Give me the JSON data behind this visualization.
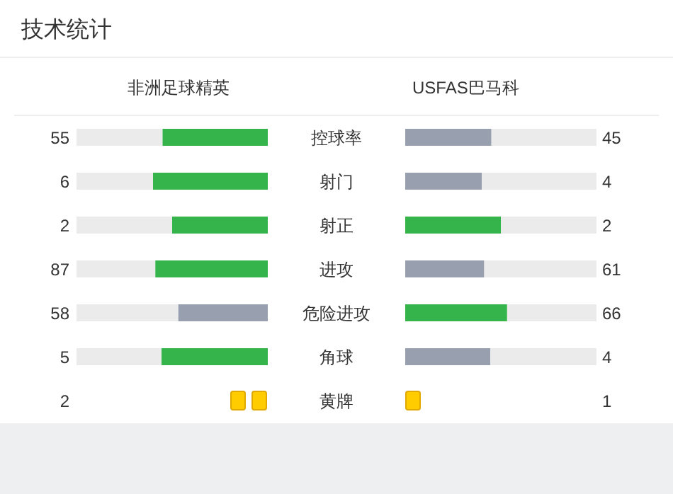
{
  "chart_data": [
    {
      "type": "other",
      "title": "技术统计",
      "data_labels": true,
      "categories": [
        "控球率",
        "射门",
        "射正",
        "进攻",
        "危险进攻",
        "角球"
      ],
      "series": [
        {
          "name": "非洲足球精英",
          "values": [
            55,
            6,
            2,
            87,
            58,
            5
          ],
          "colors": [
            "#34b44a",
            "#34b44a",
            "#34b44a",
            "#34b44a",
            "#98a0b0",
            "#34b44a"
          ]
        },
        {
          "name": "USFAS巴马科",
          "values": [
            45,
            4,
            2,
            61,
            66,
            4
          ],
          "colors": [
            "#98a0b0",
            "#98a0b0",
            "#34b44a",
            "#98a0b0",
            "#34b44a",
            "#98a0b0"
          ]
        }
      ]
    },
    {
      "type": "other",
      "data_labels": true,
      "categories": [
        "黄牌"
      ],
      "series": [
        {
          "values": [
            2
          ],
          "color": "#ffcc00"
        },
        {
          "values": [
            1
          ],
          "color": "#ffcc00"
        }
      ]
    }
  ]
}
